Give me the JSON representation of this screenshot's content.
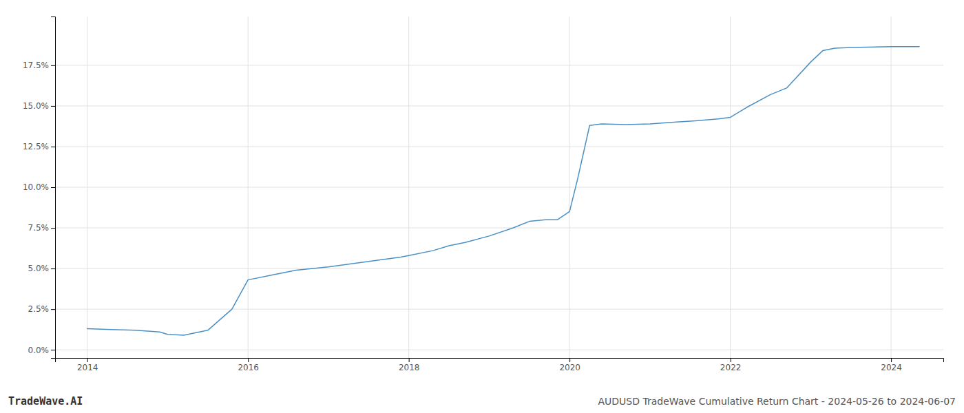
{
  "chart_data": {
    "type": "line",
    "title": "AUDUSD TradeWave Cumulative Return Chart - 2024-05-26 to 2024-06-07",
    "annotations": [
      "TradeWave.AI"
    ],
    "x": [
      2014.0,
      2014.3,
      2014.6,
      2014.9,
      2015.0,
      2015.2,
      2015.5,
      2015.8,
      2016.0,
      2016.3,
      2016.6,
      2017.0,
      2017.3,
      2017.6,
      2017.9,
      2018.0,
      2018.3,
      2018.5,
      2018.7,
      2019.0,
      2019.3,
      2019.5,
      2019.7,
      2019.85,
      2020.0,
      2020.1,
      2020.25,
      2020.4,
      2020.7,
      2021.0,
      2021.3,
      2021.6,
      2021.85,
      2022.0,
      2022.2,
      2022.5,
      2022.7,
      2023.0,
      2023.15,
      2023.3,
      2023.5,
      2023.7,
      2024.0,
      2024.35
    ],
    "values": [
      1.3,
      1.25,
      1.2,
      1.1,
      0.95,
      0.9,
      1.2,
      2.5,
      4.3,
      4.6,
      4.9,
      5.1,
      5.3,
      5.5,
      5.7,
      5.8,
      6.1,
      6.4,
      6.6,
      7.0,
      7.5,
      7.9,
      8.0,
      8.0,
      8.5,
      10.5,
      13.8,
      13.9,
      13.85,
      13.9,
      14.0,
      14.1,
      14.2,
      14.3,
      14.9,
      15.7,
      16.1,
      17.7,
      18.4,
      18.55,
      18.6,
      18.62,
      18.65,
      18.65
    ],
    "color": "#4a90c4",
    "xlim": [
      2013.6,
      2024.65
    ],
    "ylim": [
      -0.5,
      20.5
    ],
    "xticks": [
      2014,
      2016,
      2018,
      2020,
      2022,
      2024
    ],
    "yticks": [
      {
        "value": 0.0,
        "label": "0.0%"
      },
      {
        "value": 2.5,
        "label": "2.5%"
      },
      {
        "value": 5.0,
        "label": "5.0%"
      },
      {
        "value": 7.5,
        "label": "7.5%"
      },
      {
        "value": 10.0,
        "label": "10.0%"
      },
      {
        "value": 12.5,
        "label": "12.5%"
      },
      {
        "value": 15.0,
        "label": "15.0%"
      },
      {
        "value": 17.5,
        "label": "17.5%"
      }
    ],
    "grid": true
  }
}
